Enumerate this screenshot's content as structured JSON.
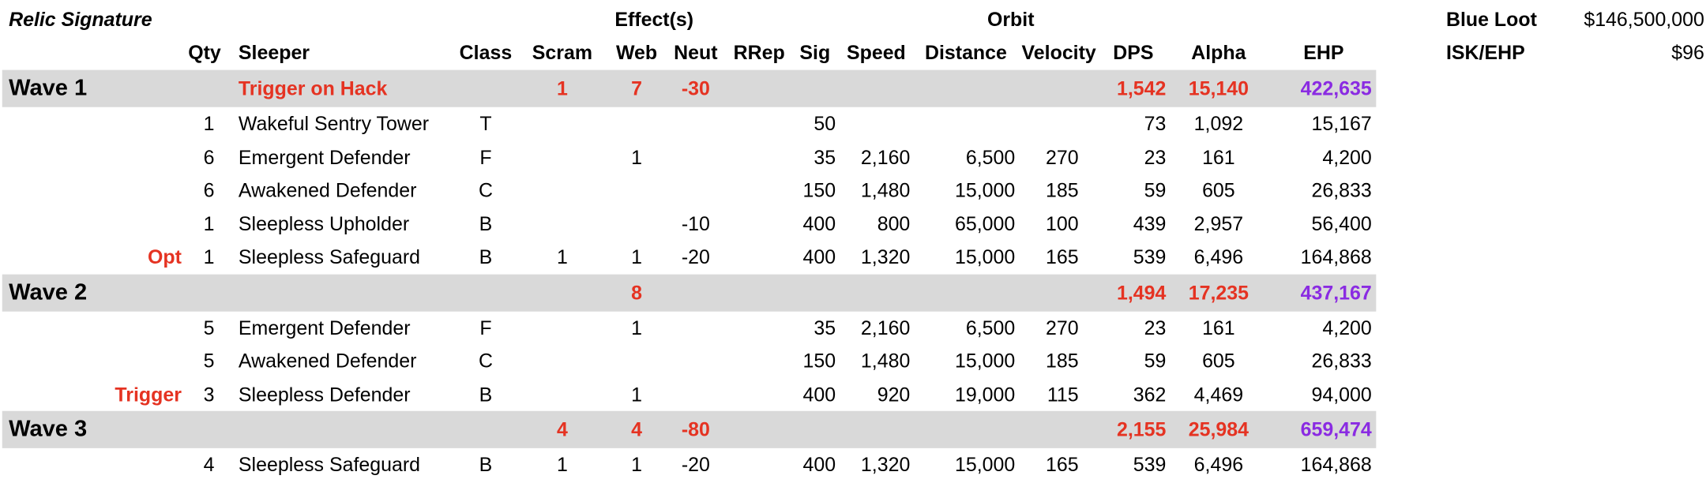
{
  "sheet": {
    "title": "Relic Signature",
    "group_headers": {
      "effects": "Effect(s)",
      "orbit": "Orbit"
    },
    "columns": {
      "qty": "Qty",
      "sleeper": "Sleeper",
      "class": "Class",
      "scram": "Scram",
      "web": "Web",
      "neut": "Neut",
      "rrep": "RRep",
      "sig": "Sig",
      "speed": "Speed",
      "distance": "Distance",
      "velocity": "Velocity",
      "dps": "DPS",
      "alpha": "Alpha",
      "ehp": "EHP"
    },
    "side": {
      "blue_loot_label": "Blue Loot",
      "blue_loot_value": "$146,500,000",
      "isk_ehp_label": "ISK/EHP",
      "isk_ehp_value": "$96"
    },
    "waves": [
      {
        "label": "Wave 1",
        "trigger_note": "Trigger on Hack",
        "scram": "1",
        "web": "7",
        "neut": "-30",
        "dps": "1,542",
        "alpha": "15,140",
        "ehp": "422,635",
        "rows": [
          {
            "note": "",
            "qty": "1",
            "sleeper": "Wakeful Sentry Tower",
            "class": "T",
            "scram": "",
            "web": "",
            "neut": "",
            "rrep": "",
            "sig": "50",
            "speed": "",
            "distance": "",
            "velocity": "",
            "dps": "73",
            "alpha": "1,092",
            "ehp": "15,167"
          },
          {
            "note": "",
            "qty": "6",
            "sleeper": "Emergent Defender",
            "class": "F",
            "scram": "",
            "web": "1",
            "neut": "",
            "rrep": "",
            "sig": "35",
            "speed": "2,160",
            "distance": "6,500",
            "velocity": "270",
            "dps": "23",
            "alpha": "161",
            "ehp": "4,200"
          },
          {
            "note": "",
            "qty": "6",
            "sleeper": "Awakened Defender",
            "class": "C",
            "scram": "",
            "web": "",
            "neut": "",
            "rrep": "",
            "sig": "150",
            "speed": "1,480",
            "distance": "15,000",
            "velocity": "185",
            "dps": "59",
            "alpha": "605",
            "ehp": "26,833"
          },
          {
            "note": "",
            "qty": "1",
            "sleeper": "Sleepless Upholder",
            "class": "B",
            "scram": "",
            "web": "",
            "neut": "-10",
            "rrep": "",
            "sig": "400",
            "speed": "800",
            "distance": "65,000",
            "velocity": "100",
            "dps": "439",
            "alpha": "2,957",
            "ehp": "56,400"
          },
          {
            "note": "Opt",
            "qty": "1",
            "sleeper": "Sleepless Safeguard",
            "class": "B",
            "scram": "1",
            "web": "1",
            "neut": "-20",
            "rrep": "",
            "sig": "400",
            "speed": "1,320",
            "distance": "15,000",
            "velocity": "165",
            "dps": "539",
            "alpha": "6,496",
            "ehp": "164,868"
          }
        ]
      },
      {
        "label": "Wave 2",
        "trigger_note": "",
        "scram": "",
        "web": "8",
        "neut": "",
        "dps": "1,494",
        "alpha": "17,235",
        "ehp": "437,167",
        "rows": [
          {
            "note": "",
            "qty": "5",
            "sleeper": "Emergent Defender",
            "class": "F",
            "scram": "",
            "web": "1",
            "neut": "",
            "rrep": "",
            "sig": "35",
            "speed": "2,160",
            "distance": "6,500",
            "velocity": "270",
            "dps": "23",
            "alpha": "161",
            "ehp": "4,200"
          },
          {
            "note": "",
            "qty": "5",
            "sleeper": "Awakened Defender",
            "class": "C",
            "scram": "",
            "web": "",
            "neut": "",
            "rrep": "",
            "sig": "150",
            "speed": "1,480",
            "distance": "15,000",
            "velocity": "185",
            "dps": "59",
            "alpha": "605",
            "ehp": "26,833"
          },
          {
            "note": "Trigger",
            "qty": "3",
            "sleeper": "Sleepless Defender",
            "class": "B",
            "scram": "",
            "web": "1",
            "neut": "",
            "rrep": "",
            "sig": "400",
            "speed": "920",
            "distance": "19,000",
            "velocity": "115",
            "dps": "362",
            "alpha": "4,469",
            "ehp": "94,000"
          }
        ]
      },
      {
        "label": "Wave 3",
        "trigger_note": "",
        "scram": "4",
        "web": "4",
        "neut": "-80",
        "dps": "2,155",
        "alpha": "25,984",
        "ehp": "659,474",
        "rows": [
          {
            "note": "",
            "qty": "4",
            "sleeper": "Sleepless Safeguard",
            "class": "B",
            "scram": "1",
            "web": "1",
            "neut": "-20",
            "rrep": "",
            "sig": "400",
            "speed": "1,320",
            "distance": "15,000",
            "velocity": "165",
            "dps": "539",
            "alpha": "6,496",
            "ehp": "164,868"
          }
        ]
      }
    ]
  }
}
